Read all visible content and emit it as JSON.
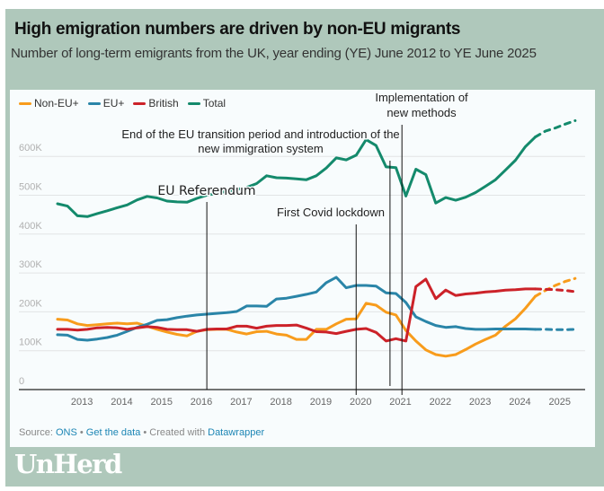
{
  "header": {
    "title": "High emigration numbers are driven by non-EU migrants",
    "subtitle": "Number of long-term emigrants from the UK, year ending (YE) June 2012 to YE June 2025"
  },
  "footer": {
    "source_label": "Source:",
    "source_link": "ONS",
    "sep1": " • ",
    "data_link": "Get the data",
    "sep2": " • Created with ",
    "tool_link": "Datawrapper"
  },
  "brand": {
    "logo_text": "UnHerd"
  },
  "colors": {
    "non_eu": "#f89c1c",
    "eu": "#2a85a8",
    "british": "#cc2229",
    "total": "#148a6c",
    "background": "#afc8bb"
  },
  "chart_data": {
    "type": "line",
    "title": "High emigration numbers are driven by non-EU migrants",
    "xlabel": "",
    "ylabel": "",
    "x_start": 2012.5,
    "x_step": 0.25,
    "xlim": [
      2012.0,
      2025.8
    ],
    "ylim": [
      0,
      700000
    ],
    "yticks": [
      0,
      100000,
      200000,
      300000,
      400000,
      500000,
      600000
    ],
    "ytick_labels": [
      "0",
      "100K",
      "200K",
      "300K",
      "400K",
      "500K",
      "600K"
    ],
    "xticks": [
      2013,
      2014,
      2015,
      2016,
      2017,
      2018,
      2019,
      2020,
      2021,
      2022,
      2023,
      2024,
      2025
    ],
    "xtick_labels": [
      "2013",
      "2014",
      "2015",
      "2016",
      "2017",
      "2018",
      "2019",
      "2020",
      "2021",
      "2022",
      "2023",
      "2024",
      "2025"
    ],
    "grid": true,
    "legend_position": "top-left",
    "units": "thousands",
    "series": [
      {
        "key": "non_eu",
        "name": "Non-EU+",
        "values": [
          181,
          179,
          169,
          165,
          167,
          169,
          171,
          169,
          171,
          163,
          155,
          148,
          142,
          138,
          150,
          154,
          155,
          155,
          148,
          143,
          149,
          150,
          143,
          140,
          129,
          129,
          155,
          155,
          169,
          181,
          182,
          222,
          217,
          199,
          192,
          152,
          125,
          102,
          90,
          86,
          90,
          103,
          117,
          129,
          140,
          163,
          182,
          209,
          240
        ],
        "projection": [
          240,
          255,
          268,
          278,
          286
        ]
      },
      {
        "key": "eu",
        "name": "EU+",
        "values": [
          141,
          140,
          129,
          127,
          130,
          134,
          140,
          150,
          160,
          168,
          178,
          180,
          185,
          189,
          192,
          194,
          196,
          198,
          201,
          215,
          215,
          214,
          233,
          235,
          240,
          245,
          251,
          275,
          289,
          262,
          268,
          268,
          266,
          249,
          247,
          224,
          187,
          175,
          165,
          160,
          162,
          157,
          155,
          155,
          156,
          156,
          156,
          156,
          155
        ],
        "projection": [
          155,
          155,
          154,
          154,
          155
        ]
      },
      {
        "key": "british",
        "name": "British",
        "values": [
          155,
          155,
          153,
          155,
          159,
          160,
          159,
          155,
          159,
          162,
          160,
          155,
          154,
          154,
          150,
          155,
          156,
          156,
          163,
          163,
          158,
          163,
          165,
          165,
          166,
          158,
          149,
          148,
          144,
          150,
          155,
          157,
          147,
          125,
          131,
          125,
          265,
          284,
          234,
          256,
          242,
          246,
          248,
          251,
          253,
          256,
          257,
          259,
          259
        ],
        "projection": [
          259,
          258,
          257,
          255,
          252
        ]
      },
      {
        "key": "total",
        "name": "Total",
        "values": [
          478,
          472,
          447,
          445,
          453,
          460,
          468,
          475,
          488,
          497,
          493,
          485,
          483,
          482,
          492,
          500,
          505,
          510,
          515,
          520,
          530,
          550,
          545,
          544,
          542,
          540,
          550,
          570,
          596,
          591,
          603,
          643,
          628,
          573,
          571,
          498,
          567,
          553,
          480,
          494,
          487,
          495,
          507,
          523,
          540,
          565,
          590,
          625,
          650
        ],
        "projection": [
          650,
          665,
          673,
          683,
          692
        ]
      }
    ],
    "annotations": [
      {
        "id": "eu-referendum",
        "x": 2016.25,
        "lines": [
          "EU Referendum"
        ]
      },
      {
        "id": "covid",
        "x": 2020.0,
        "lines": [
          "First Covid lockdown"
        ]
      },
      {
        "id": "transition",
        "x": 2020.85,
        "lines": [
          "End of the EU transition period and introduction of the",
          "new immigration system"
        ]
      },
      {
        "id": "new-methods",
        "x": 2021.15,
        "lines": [
          "Implementation of",
          "new methods"
        ]
      }
    ]
  }
}
